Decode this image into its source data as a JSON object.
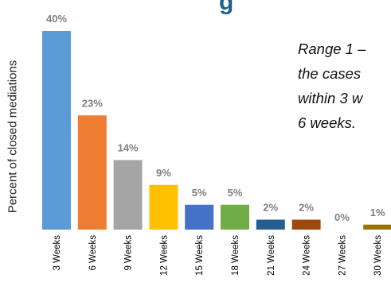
{
  "header": {
    "title_fragment": "g"
  },
  "annotation": {
    "lines": [
      "Range 1 –",
      "the cases",
      "within 3 w",
      "6 weeks."
    ]
  },
  "chart_data": {
    "type": "bar",
    "title": "",
    "xlabel": "",
    "ylabel": "Percent of closed mediations",
    "categories": [
      "3 Weeks",
      "6 Weeks",
      "9 Weeks",
      "12 Weeks",
      "15 Weeks",
      "18 Weeks",
      "21 Weeks",
      "24 Weeks",
      "27 Weeks",
      "30 Weeks"
    ],
    "values": [
      40,
      23,
      14,
      9,
      5,
      5,
      2,
      2,
      0,
      1
    ],
    "data_labels": [
      "40%",
      "23%",
      "14%",
      "9%",
      "5%",
      "5%",
      "2%",
      "2%",
      "0%",
      "1%"
    ],
    "colors": [
      "#5b9bd5",
      "#ed7d31",
      "#a5a5a5",
      "#ffc000",
      "#4472c4",
      "#70ad47",
      "#255e91",
      "#9e480e",
      "#636363",
      "#997300"
    ],
    "ylim": [
      0,
      40
    ],
    "grid": false,
    "legend": "none"
  }
}
